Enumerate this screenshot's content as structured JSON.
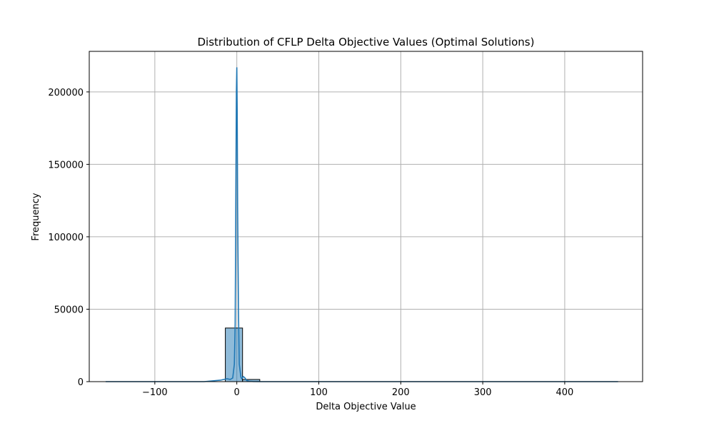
{
  "chart_data": {
    "type": "bar",
    "title": "Distribution of CFLP Delta Objective Values (Optimal Solutions)",
    "xlabel": "Delta Objective Value",
    "ylabel": "Frequency",
    "xlim": [
      -180,
      495
    ],
    "ylim": [
      0,
      228000
    ],
    "xticks": [
      -100,
      0,
      100,
      200,
      300,
      400
    ],
    "xtick_labels": [
      "−100",
      "0",
      "100",
      "200",
      "300",
      "400"
    ],
    "yticks": [
      0,
      50000,
      100000,
      150000,
      200000
    ],
    "ytick_labels": [
      "0",
      "50000",
      "100000",
      "150000",
      "200000"
    ],
    "grid": true,
    "histogram": {
      "bins": [
        {
          "x0": -14,
          "x1": 7,
          "count": 37000
        },
        {
          "x0": 7,
          "x1": 28,
          "count": 1500
        }
      ],
      "color": "#1f77b4",
      "fill_opacity": 0.5
    },
    "kde": {
      "color": "#1f77b4",
      "x": [
        -160,
        -40,
        -20,
        -12,
        -8,
        -5,
        -3,
        -2,
        -1.5,
        -1,
        -0.5,
        0,
        0.5,
        1,
        2,
        3,
        5,
        6,
        8,
        10,
        12,
        15,
        20,
        30,
        60,
        200,
        465
      ],
      "y": [
        0,
        0,
        1000,
        2000,
        1500,
        2500,
        12000,
        40000,
        90000,
        150000,
        200000,
        217000,
        185000,
        120000,
        50000,
        12000,
        3000,
        2000,
        3500,
        2500,
        800,
        300,
        100,
        0,
        0,
        0,
        0
      ]
    }
  }
}
